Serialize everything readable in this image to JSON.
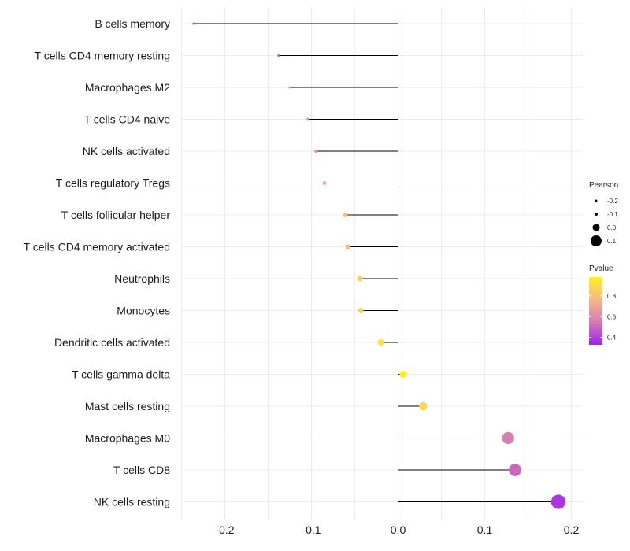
{
  "chart_data": {
    "type": "lollipop",
    "title": "",
    "xlabel": "",
    "ylabel": "",
    "xlim": [
      -0.25,
      0.2
    ],
    "x_ticks": [
      -0.2,
      -0.1,
      0.0,
      0.1,
      0.2
    ],
    "x_tick_labels": [
      "-0.2",
      "-0.1",
      "0.0",
      "0.1",
      "0.2"
    ],
    "grid": true,
    "categories": [
      "B cells memory",
      "T cells CD4 memory resting",
      "Macrophages M2",
      "T cells CD4 naive",
      "NK cells activated",
      "T cells regulatory  Tregs ",
      "T cells follicular helper",
      "T cells CD4 memory activated",
      "Neutrophils",
      "Monocytes",
      "Dendritic cells activated",
      "T cells gamma delta",
      "Mast cells resting",
      "Macrophages M0",
      "T cells CD8",
      "NK cells resting"
    ],
    "pearson": [
      -0.236,
      -0.138,
      -0.125,
      -0.104,
      -0.095,
      -0.085,
      -0.061,
      -0.058,
      -0.044,
      -0.043,
      -0.02,
      0.006,
      0.029,
      0.127,
      0.135,
      0.185
    ],
    "pvalue": [
      0.45,
      0.46,
      0.58,
      0.64,
      0.66,
      0.69,
      0.77,
      0.78,
      0.83,
      0.84,
      0.93,
      0.98,
      0.88,
      0.56,
      0.5,
      0.38
    ],
    "legend": {
      "size_title": "Pearson",
      "size_labels": [
        "-0.2",
        "-0.1",
        "0.0",
        "0.1"
      ],
      "size_values": [
        -0.2,
        -0.1,
        0.0,
        0.1
      ],
      "color_title": "Pvalue",
      "color_range": [
        0.33,
        0.98
      ],
      "color_ticks": [
        0.4,
        0.6,
        0.8
      ],
      "color_tick_labels": [
        "0.4",
        "0.6",
        "0.8"
      ],
      "colors": [
        "#a020f0",
        "#d47bb3",
        "#f5b889",
        "#fff11f"
      ],
      "placement": "right"
    }
  }
}
